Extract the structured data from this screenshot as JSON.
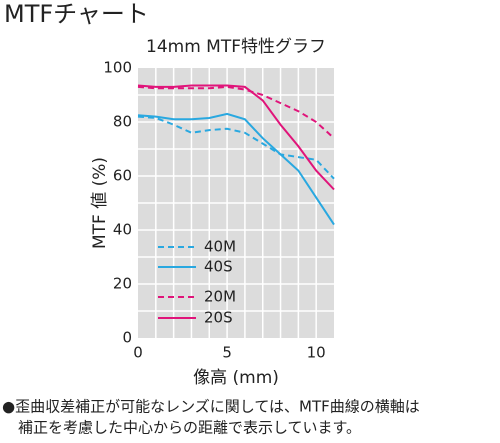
{
  "chart_data": {
    "type": "line",
    "title": "MTFチャート",
    "subtitle": "14mm MTF特性グラフ",
    "x_label": "像高 (mm)",
    "y_label": "MTF 値 (%)",
    "x": [
      0,
      1,
      2,
      3,
      4,
      5,
      6,
      7,
      8,
      9,
      10,
      11
    ],
    "series": [
      {
        "name": "40M",
        "color": "#29a8e0",
        "dashed": true,
        "values": [
          82,
          81.5,
          79,
          76,
          77,
          77.5,
          76,
          72,
          68,
          67,
          66,
          59
        ]
      },
      {
        "name": "40S",
        "color": "#29a8e0",
        "dashed": false,
        "values": [
          82.5,
          82,
          81,
          81,
          81.5,
          83,
          81,
          74,
          68,
          62,
          52,
          42
        ]
      },
      {
        "name": "20M",
        "color": "#e0147a",
        "dashed": true,
        "values": [
          93,
          92.5,
          92.5,
          92.5,
          92.5,
          93,
          92,
          90,
          87,
          84,
          80,
          74
        ]
      },
      {
        "name": "20S",
        "color": "#e0147a",
        "dashed": false,
        "values": [
          93.5,
          93,
          93,
          93.5,
          93.5,
          93.5,
          93,
          88,
          79,
          71,
          62,
          55
        ]
      }
    ],
    "xlim": [
      0,
      11
    ],
    "ylim": [
      0,
      100
    ],
    "xticks": [
      0,
      5,
      10
    ],
    "yticks": [
      0,
      20,
      40,
      60,
      80,
      100
    ],
    "x_gridlines": [
      1,
      2,
      3,
      4,
      5,
      6,
      7,
      8,
      9,
      10
    ],
    "y_gridlines": [
      10,
      20,
      30,
      40,
      50,
      60,
      70,
      80,
      90
    ],
    "note": [
      "●歪曲収差補正が可能なレンズに関しては、MTF曲線の横軸は",
      "補正を考慮した中心からの距離で表示しています。"
    ]
  }
}
